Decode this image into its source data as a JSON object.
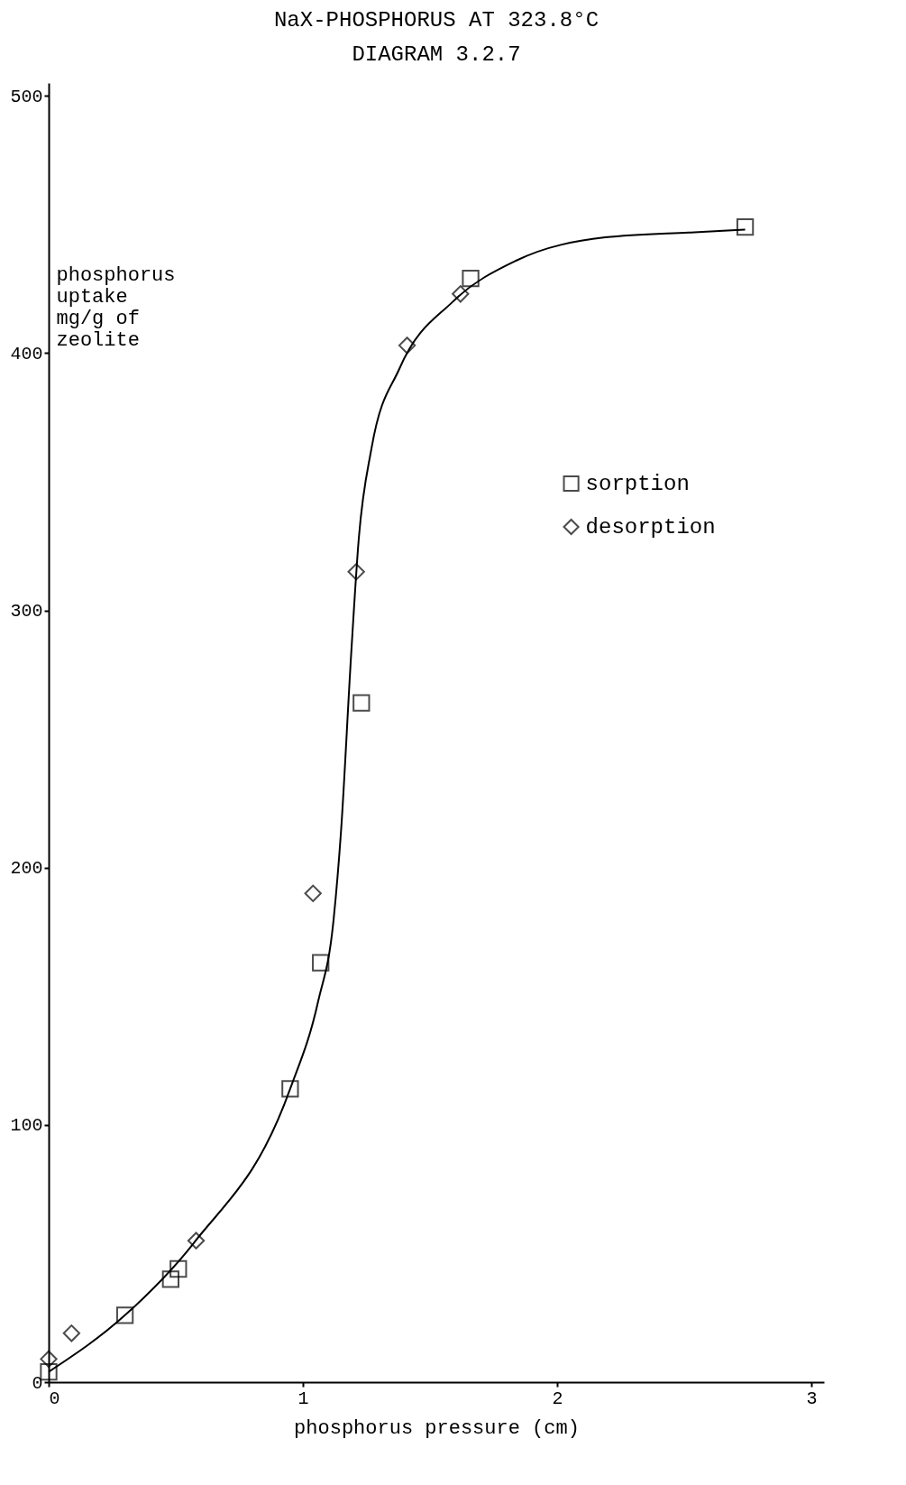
{
  "chart_data": {
    "type": "scatter",
    "title": "NaX-PHOSPHORUS AT 323.8°C",
    "subtitle": "DIAGRAM 3.2.7",
    "xlabel": "phosphorus pressure (cm)",
    "ylabel": "phosphorus uptake mg/g of zeolite",
    "xlim": [
      0,
      3.05
    ],
    "ylim": [
      0,
      505
    ],
    "xticks": [
      0,
      1,
      2,
      3
    ],
    "yticks": [
      0,
      100,
      200,
      300,
      400,
      500
    ],
    "grid": false,
    "legend": "right",
    "series": [
      {
        "name": "sorption",
        "color": "#000000",
        "marker": "square",
        "x": [
          0,
          0.3,
          0.48,
          0.51,
          0.95,
          1.07,
          1.23,
          1.66,
          2.74
        ],
        "values": [
          4,
          26,
          40,
          44,
          114,
          163,
          264,
          429,
          449
        ]
      },
      {
        "name": "desorption",
        "color": "#000000",
        "marker": "diamond",
        "x": [
          0,
          0.09,
          0.58,
          1.04,
          1.21,
          1.41,
          1.62
        ],
        "values": [
          9,
          19,
          55,
          190,
          315,
          403,
          423
        ]
      },
      {
        "type": "line",
        "color": "#000000",
        "line_style": "solid",
        "x": [
          0,
          0.3,
          0.57,
          0.95,
          1.06,
          1.12,
          1.15,
          1.19,
          1.22,
          1.27,
          1.38,
          1.59,
          1.84,
          2.19,
          2.54,
          2.74
        ],
        "values": [
          4,
          26,
          54,
          114,
          148,
          179,
          214,
          283,
          328,
          363,
          394,
          420,
          436,
          445,
          447,
          448
        ]
      }
    ]
  }
}
